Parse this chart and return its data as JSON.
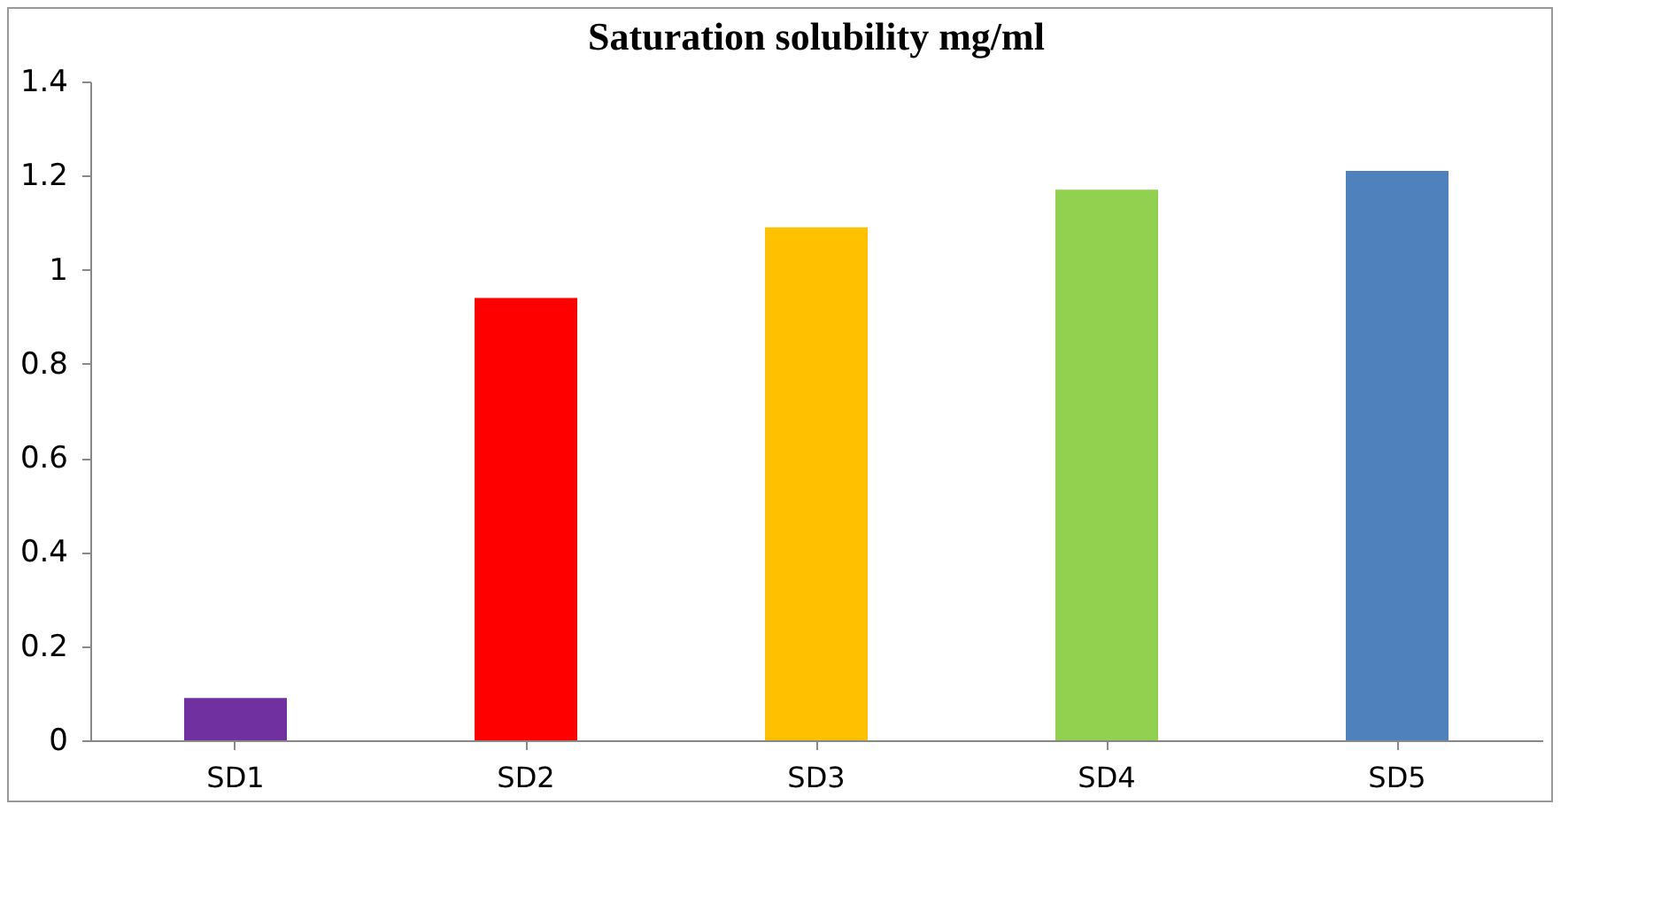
{
  "chart_data": {
    "type": "bar",
    "title": "Saturation solubility mg/ml",
    "categories": [
      "SD1",
      "SD2",
      "SD3",
      "SD4",
      "SD5"
    ],
    "values": [
      0.09,
      0.94,
      1.09,
      1.17,
      1.21
    ],
    "colors": [
      "#7030a0",
      "#ff0000",
      "#ffc000",
      "#92d050",
      "#4f81bd"
    ],
    "ylim": [
      0,
      1.4
    ],
    "yticks": [
      0,
      0.2,
      0.4,
      0.6,
      0.8,
      1,
      1.2,
      1.4
    ],
    "grid": false
  }
}
